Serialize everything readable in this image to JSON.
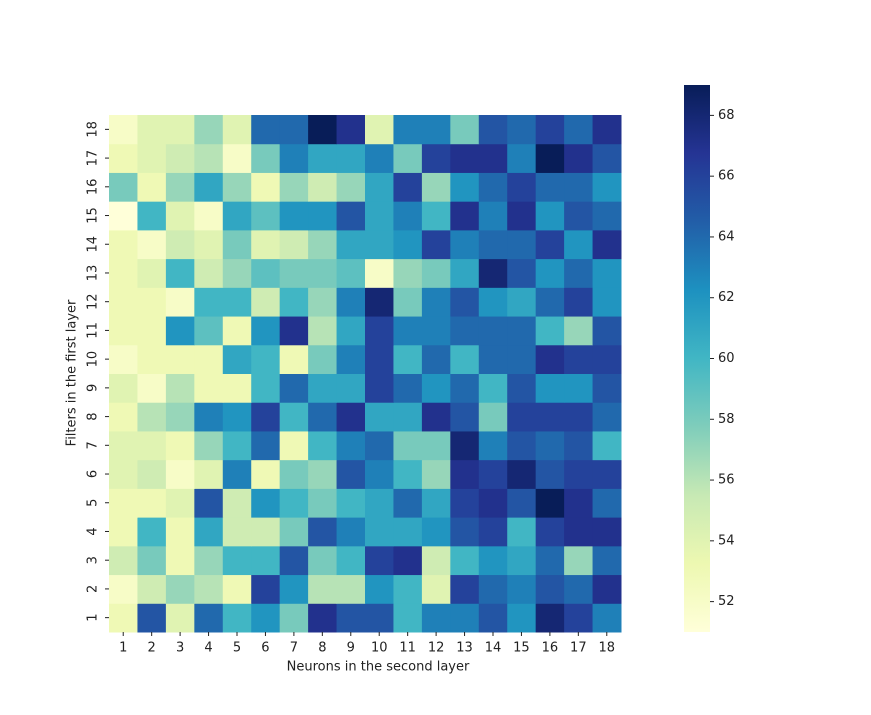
{
  "chart_data": {
    "type": "heatmap",
    "x_label": "Neurons in the second layer",
    "y_label": "Filters in the first layer",
    "x": [
      "1",
      "2",
      "3",
      "4",
      "5",
      "6",
      "7",
      "8",
      "9",
      "10",
      "11",
      "12",
      "13",
      "14",
      "15",
      "16",
      "17",
      "18"
    ],
    "y": [
      "1",
      "2",
      "3",
      "4",
      "5",
      "6",
      "7",
      "8",
      "9",
      "10",
      "11",
      "12",
      "13",
      "14",
      "15",
      "16",
      "17",
      "18"
    ],
    "z": [
      [
        53,
        65,
        54,
        64,
        60,
        62,
        58,
        67,
        65,
        65,
        60,
        63,
        63,
        65,
        62,
        68,
        66,
        63
      ],
      [
        52,
        55,
        57,
        56,
        53,
        66,
        62,
        56,
        56,
        62,
        60,
        54,
        66,
        64,
        63,
        65,
        64,
        67
      ],
      [
        55,
        58,
        53,
        57,
        60,
        60,
        65,
        58,
        60,
        66,
        67,
        55,
        60,
        62,
        61,
        64,
        57,
        64
      ],
      [
        53,
        60,
        53,
        61,
        55,
        55,
        58,
        65,
        63,
        61,
        61,
        62,
        65,
        66,
        60,
        66,
        67,
        67
      ],
      [
        53,
        53,
        54,
        65,
        55,
        62,
        60,
        58,
        60,
        61,
        64,
        61,
        66,
        67,
        65,
        69,
        67,
        64
      ],
      [
        54,
        55,
        52,
        54,
        63,
        53,
        58,
        57,
        65,
        63,
        60,
        57,
        67,
        66,
        68,
        65,
        66,
        66
      ],
      [
        54,
        54,
        53,
        57,
        60,
        64,
        53,
        60,
        63,
        64,
        58,
        58,
        68,
        63,
        65,
        64,
        65,
        60
      ],
      [
        53,
        56,
        57,
        63,
        62,
        66,
        60,
        64,
        67,
        61,
        61,
        67,
        65,
        58,
        66,
        66,
        66,
        64
      ],
      [
        54,
        52,
        56,
        53,
        53,
        60,
        64,
        61,
        61,
        66,
        64,
        62,
        64,
        60,
        65,
        62,
        62,
        65
      ],
      [
        52,
        53,
        53,
        53,
        61,
        60,
        53,
        58,
        63,
        66,
        60,
        64,
        60,
        64,
        64,
        67,
        66,
        66
      ],
      [
        53,
        53,
        62,
        59,
        53,
        62,
        67,
        56,
        61,
        66,
        63,
        63,
        64,
        64,
        64,
        60,
        57,
        65
      ],
      [
        53,
        53,
        52,
        60,
        60,
        55,
        60,
        57,
        63,
        68,
        58,
        63,
        65,
        62,
        61,
        64,
        66,
        62
      ],
      [
        53,
        54,
        60,
        55,
        57,
        59,
        58,
        58,
        59,
        52,
        57,
        58,
        61,
        68,
        65,
        62,
        64,
        62
      ],
      [
        53,
        52,
        55,
        54,
        58,
        54,
        55,
        57,
        61,
        61,
        62,
        66,
        63,
        64,
        64,
        66,
        62,
        67
      ],
      [
        51,
        60,
        54,
        52,
        61,
        59,
        62,
        62,
        65,
        61,
        63,
        60,
        67,
        63,
        67,
        62,
        65,
        64
      ],
      [
        58,
        53,
        57,
        61,
        57,
        53,
        57,
        55,
        57,
        61,
        66,
        57,
        62,
        64,
        66,
        64,
        64,
        62
      ],
      [
        53,
        54,
        55,
        56,
        52,
        58,
        63,
        61,
        61,
        63,
        58,
        66,
        67,
        67,
        63,
        69,
        67,
        65
      ],
      [
        52,
        54,
        54,
        57,
        54,
        64,
        64,
        69,
        67,
        54,
        63,
        63,
        58,
        65,
        64,
        66,
        64,
        67
      ]
    ],
    "zlim": [
      51,
      69
    ],
    "zticks": [
      52,
      54,
      56,
      58,
      60,
      62,
      64,
      66,
      68
    ],
    "colormap": [
      "#ffffd9",
      "#edf8b1",
      "#c7e9b4",
      "#7fcdbb",
      "#41b6c4",
      "#1d91c0",
      "#225ea8",
      "#253494",
      "#081d58"
    ]
  }
}
